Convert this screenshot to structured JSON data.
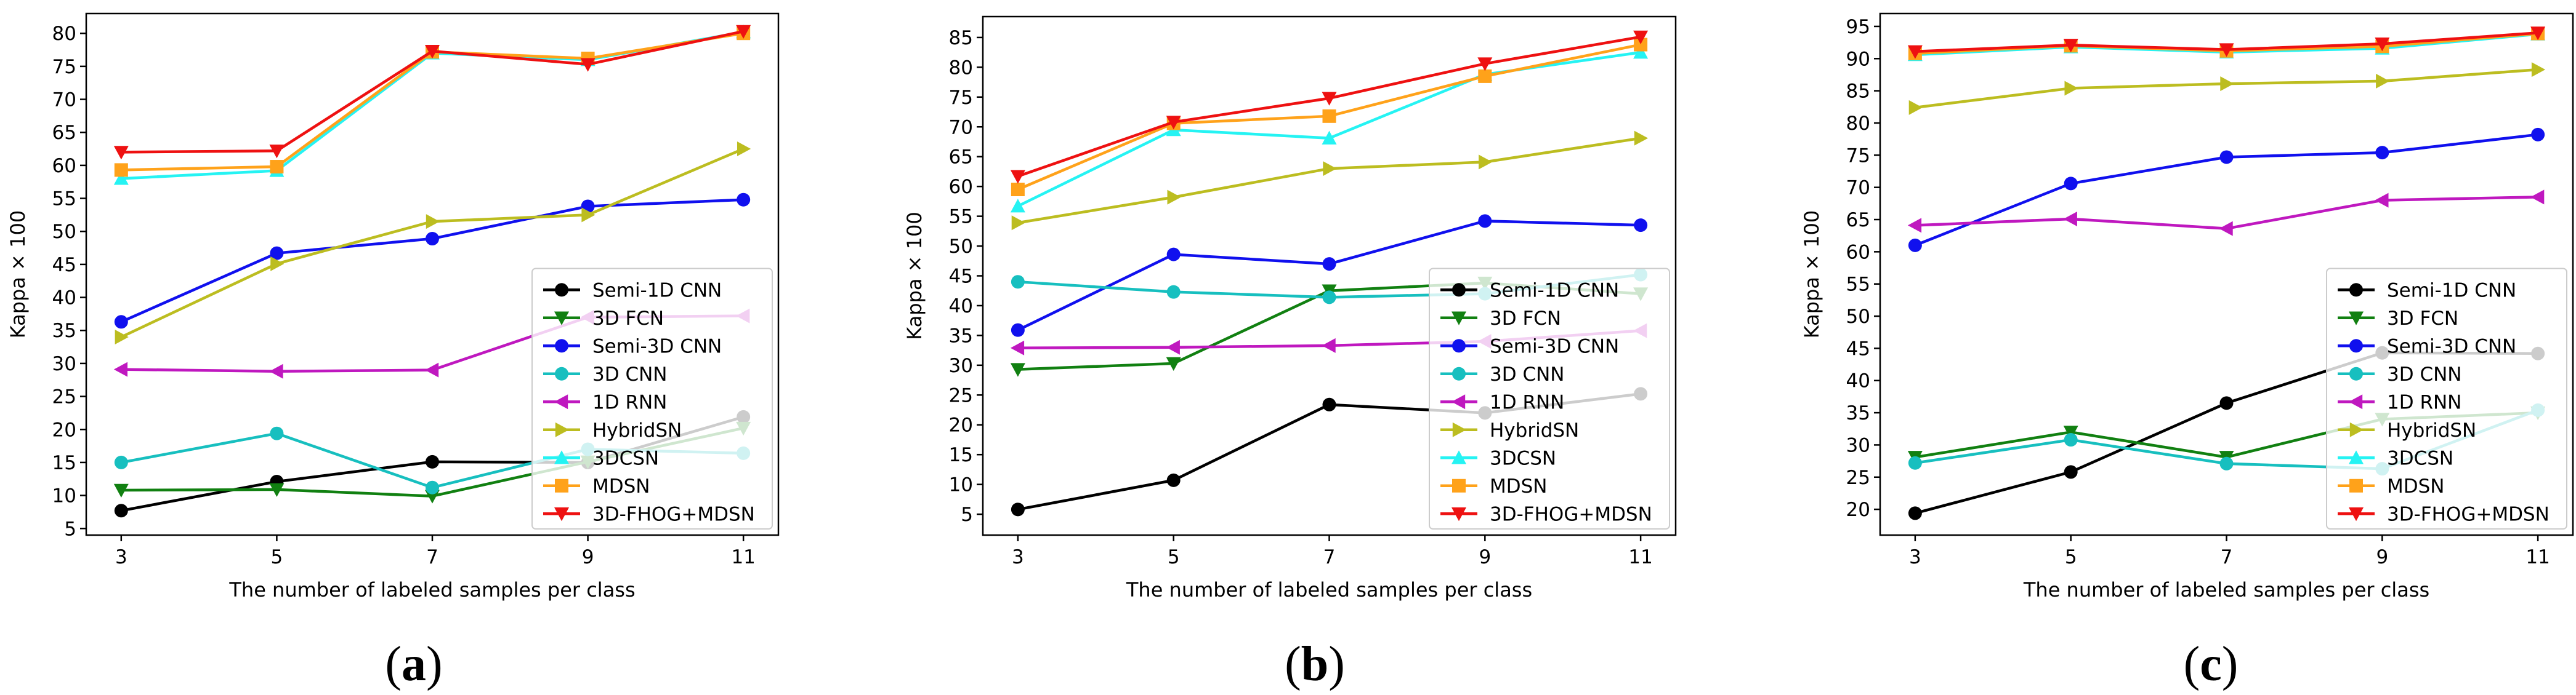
{
  "captions": [
    "a",
    "b",
    "c"
  ],
  "colors": {
    "Semi-1D CNN": "#000000",
    "3D FCN": "#118011",
    "Semi-3D CNN": "#1010ee",
    "3D CNN": "#17bfbf",
    "1D RNN": "#bf18bf",
    "HybridSN": "#bcbd20",
    "3DCSN": "#25f3f3",
    "MDSN": "#ffa21a",
    "3D-FHOG+MDSN": "#ee1111"
  },
  "markers": {
    "Semi-1D CNN": "circle",
    "3D FCN": "triangle-down",
    "Semi-3D CNN": "circle",
    "3D CNN": "circle",
    "1D RNN": "triangle-left",
    "HybridSN": "triangle-right",
    "3DCSN": "triangle-up",
    "MDSN": "square",
    "3D-FHOG+MDSN": "triangle-down"
  },
  "chart_data": [
    {
      "type": "line",
      "xlabel": "The number of labeled samples per class",
      "ylabel": "Kappa × 100",
      "x": [
        3,
        5,
        7,
        9,
        11
      ],
      "ylim": [
        4,
        83
      ],
      "yticks": [
        5,
        10,
        15,
        20,
        25,
        30,
        35,
        40,
        45,
        50,
        55,
        60,
        65,
        70,
        75,
        80
      ],
      "legend": "bottom-right",
      "series": [
        {
          "name": "Semi-1D CNN",
          "values": [
            7.7,
            12.1,
            15.1,
            15.0,
            21.9
          ]
        },
        {
          "name": "3D FCN",
          "values": [
            10.8,
            10.9,
            9.9,
            15.1,
            20.2
          ]
        },
        {
          "name": "Semi-3D CNN",
          "values": [
            36.3,
            46.7,
            48.9,
            53.8,
            54.8
          ]
        },
        {
          "name": "3D CNN",
          "values": [
            15.0,
            19.4,
            11.2,
            17.0,
            16.4
          ]
        },
        {
          "name": "1D RNN",
          "values": [
            29.1,
            28.8,
            29.0,
            37.0,
            37.2
          ]
        },
        {
          "name": "HybridSN",
          "values": [
            34.0,
            45.1,
            51.5,
            52.5,
            62.5
          ]
        },
        {
          "name": "3DCSN",
          "values": [
            58.0,
            59.2,
            77.0,
            76.0,
            80.2
          ]
        },
        {
          "name": "MDSN",
          "values": [
            59.3,
            59.8,
            77.2,
            76.2,
            80.0
          ]
        },
        {
          "name": "3D-FHOG+MDSN",
          "values": [
            62.0,
            62.2,
            77.3,
            75.3,
            80.3
          ]
        }
      ]
    },
    {
      "type": "line",
      "xlabel": "The number of labeled samples per class",
      "ylabel": "Kappa × 100",
      "x": [
        3,
        5,
        7,
        9,
        11
      ],
      "ylim": [
        1.5,
        88.5
      ],
      "yticks": [
        5,
        10,
        15,
        20,
        25,
        30,
        35,
        40,
        45,
        50,
        55,
        60,
        65,
        70,
        75,
        80,
        85
      ],
      "legend": "bottom-right",
      "series": [
        {
          "name": "Semi-1D CNN",
          "values": [
            5.8,
            10.7,
            23.4,
            22.0,
            25.2
          ]
        },
        {
          "name": "3D FCN",
          "values": [
            29.3,
            30.3,
            42.5,
            43.8,
            42.0
          ]
        },
        {
          "name": "Semi-3D CNN",
          "values": [
            35.9,
            48.6,
            47.0,
            54.2,
            53.5
          ]
        },
        {
          "name": "3D CNN",
          "values": [
            44.0,
            42.3,
            41.4,
            42.0,
            45.2
          ]
        },
        {
          "name": "1D RNN",
          "values": [
            32.9,
            33.0,
            33.3,
            34.0,
            35.8
          ]
        },
        {
          "name": "HybridSN",
          "values": [
            53.9,
            58.2,
            63.0,
            64.1,
            68.1
          ]
        },
        {
          "name": "3DCSN",
          "values": [
            56.7,
            69.5,
            68.1,
            78.8,
            82.5
          ]
        },
        {
          "name": "MDSN",
          "values": [
            59.5,
            70.6,
            71.8,
            78.5,
            83.8
          ]
        },
        {
          "name": "3D-FHOG+MDSN",
          "values": [
            61.7,
            70.8,
            74.8,
            80.6,
            85.1
          ]
        }
      ]
    },
    {
      "type": "line",
      "xlabel": "The number of labeled samples per class",
      "ylabel": "Kappa × 100",
      "x": [
        3,
        5,
        7,
        9,
        11
      ],
      "ylim": [
        16,
        97
      ],
      "yticks": [
        20,
        25,
        30,
        35,
        40,
        45,
        50,
        55,
        60,
        65,
        70,
        75,
        80,
        85,
        90,
        95
      ],
      "legend": "bottom-right",
      "series": [
        {
          "name": "Semi-1D CNN",
          "values": [
            19.4,
            25.8,
            36.5,
            44.3,
            44.2
          ]
        },
        {
          "name": "3D FCN",
          "values": [
            28.1,
            32.0,
            28.1,
            34.0,
            35.0
          ]
        },
        {
          "name": "Semi-3D CNN",
          "values": [
            61.0,
            70.6,
            74.7,
            75.4,
            78.2
          ]
        },
        {
          "name": "3D CNN",
          "values": [
            27.2,
            30.8,
            27.1,
            26.3,
            35.4
          ]
        },
        {
          "name": "1D RNN",
          "values": [
            64.1,
            65.1,
            63.6,
            68.0,
            68.5
          ]
        },
        {
          "name": "HybridSN",
          "values": [
            82.4,
            85.4,
            86.1,
            86.5,
            88.3
          ]
        },
        {
          "name": "3DCSN",
          "values": [
            90.6,
            91.8,
            91.0,
            91.6,
            93.8
          ]
        },
        {
          "name": "MDSN",
          "values": [
            90.8,
            92.0,
            91.2,
            91.9,
            93.9
          ]
        },
        {
          "name": "3D-FHOG+MDSN",
          "values": [
            91.1,
            92.1,
            91.4,
            92.3,
            94.0
          ]
        }
      ]
    }
  ]
}
